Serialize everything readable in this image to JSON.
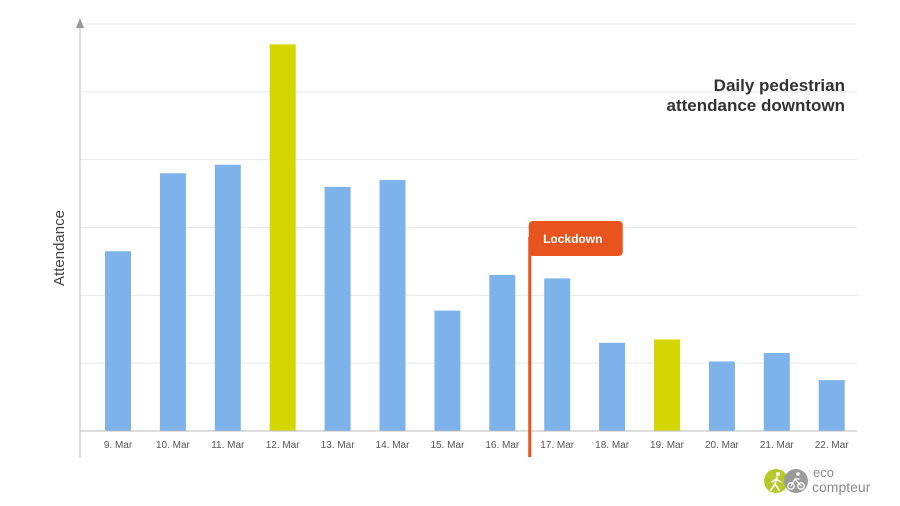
{
  "chart_data": {
    "type": "bar",
    "title_lines": [
      "Daily pedestrian",
      "attendance downtown"
    ],
    "xlabel": "",
    "ylabel": "Attendance",
    "categories": [
      "9. Mar",
      "10. Mar",
      "11. Mar",
      "12. Mar",
      "13. Mar",
      "14. Mar",
      "15. Mar",
      "16. Mar",
      "17. Mar",
      "18. Mar",
      "19. Mar",
      "20. Mar",
      "21. Mar",
      "22. Mar"
    ],
    "values": [
      53,
      76,
      78.5,
      114,
      72,
      74,
      35.5,
      46,
      45,
      26,
      27,
      20.5,
      23,
      15
    ],
    "highlighted": [
      false,
      false,
      false,
      true,
      false,
      false,
      false,
      false,
      false,
      false,
      true,
      false,
      false,
      false
    ],
    "ylim": [
      0,
      120
    ],
    "y_tick_values": [
      0,
      20,
      40,
      60,
      80,
      100,
      120
    ],
    "y_tick_labels_shown": false,
    "grid": "horizontal",
    "annotation": {
      "label": "Lockdown",
      "between_categories": [
        "16. Mar",
        "17. Mar"
      ]
    }
  },
  "colors": {
    "bar": "#7db3ea",
    "highlight": "#d4d600",
    "annotation": "#e8541e",
    "grid": "#e8e8e8",
    "axis": "#bbbbbb",
    "logo_walker": "#b5c92a",
    "logo_cyclist": "#9b9b9b"
  },
  "logo": {
    "text_top": "eco",
    "text_bottom": "compteur",
    "icons": [
      "pedestrian-icon",
      "cyclist-icon"
    ]
  }
}
